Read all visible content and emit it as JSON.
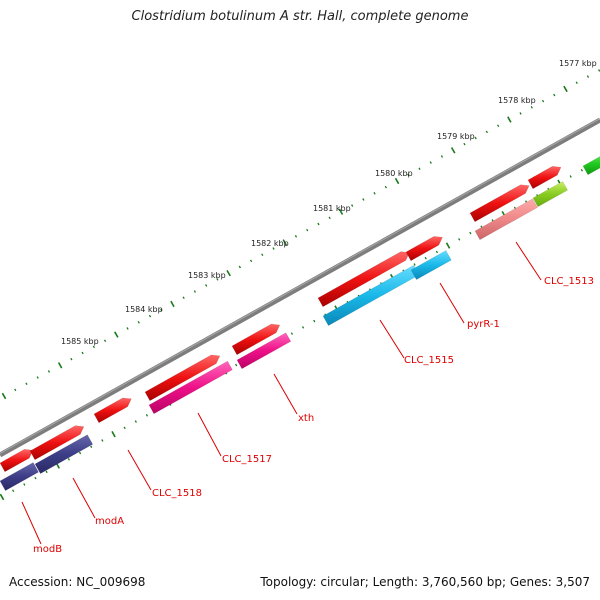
{
  "title": "Clostridium botulinum A str. Hall, complete genome",
  "footer": {
    "accession": "Accession: NC_009698",
    "stats": "Topology: circular; Length: 3,760,560 bp; Genes: 3,507"
  },
  "colors": {
    "backbone": "#808080",
    "scale_ticks": "#1a7a1a",
    "label_text": "#dd0000",
    "leader_line": "#dd0000",
    "forward_gene": "#ee1111",
    "cds_blue": "#19b8e8",
    "cds_pink": "#ee1188",
    "cds_purple": "#3d3d88",
    "cds_salmon": "#ee8888",
    "cds_green": "#88cc22",
    "cds_bright_green": "#22cc22"
  },
  "scale_labels": [
    "1577 kbp",
    "1578 kbp",
    "1579 kbp",
    "1580 kbp",
    "1581 kbp",
    "1582 kbp",
    "1583 kbp",
    "1584 kbp",
    "1585 kbp"
  ],
  "gene_labels": [
    "CLC_1513",
    "pyrR-1",
    "CLC_1515",
    "xth",
    "CLC_1517",
    "CLC_1518",
    "modA",
    "modB"
  ]
}
